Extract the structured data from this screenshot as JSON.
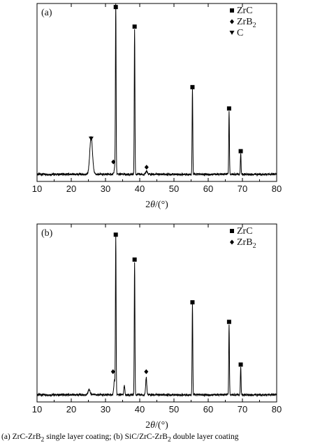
{
  "chart_data": [
    {
      "type": "line",
      "panel_label": "(a)",
      "xlabel_prefix": "2",
      "xlabel_theta": "θ",
      "xlabel_suffix": "/(°)",
      "ylabel": "",
      "xlim": [
        10,
        80
      ],
      "xticks": [
        "10",
        "20",
        "30",
        "40",
        "50",
        "60",
        "70",
        "80"
      ],
      "grid": false,
      "legend_position": "top-right",
      "legend": [
        {
          "symbol": "square",
          "text": "ZrC",
          "sub": ""
        },
        {
          "symbol": "diamond",
          "text": "ZrB",
          "sub": "2"
        },
        {
          "symbol": "triangle-down",
          "text": "C",
          "sub": ""
        }
      ],
      "series": [
        {
          "peaks": [
            {
              "x": 25.8,
              "h": 0.21,
              "w": 0.55
            },
            {
              "x": 33.0,
              "h": 0.93,
              "w": 0.14
            },
            {
              "x": 32.8,
              "h": 0.05,
              "w": 0.3
            },
            {
              "x": 38.5,
              "h": 0.82,
              "w": 0.14
            },
            {
              "x": 42.0,
              "h": 0.02,
              "w": 0.3
            },
            {
              "x": 55.4,
              "h": 0.48,
              "w": 0.14
            },
            {
              "x": 66.1,
              "h": 0.36,
              "w": 0.14
            },
            {
              "x": 69.5,
              "h": 0.12,
              "w": 0.14
            }
          ],
          "baseline": 0.04
        }
      ],
      "markers": [
        {
          "x": 25.8,
          "y": 0.24,
          "symbol": "triangle-down"
        },
        {
          "x": 33.0,
          "y": 0.98,
          "symbol": "square"
        },
        {
          "x": 32.3,
          "y": 0.11,
          "symbol": "diamond"
        },
        {
          "x": 38.5,
          "y": 0.87,
          "symbol": "square"
        },
        {
          "x": 42.0,
          "y": 0.08,
          "symbol": "diamond"
        },
        {
          "x": 55.4,
          "y": 0.53,
          "symbol": "square"
        },
        {
          "x": 66.1,
          "y": 0.41,
          "symbol": "square"
        },
        {
          "x": 69.5,
          "y": 0.17,
          "symbol": "square"
        }
      ]
    },
    {
      "type": "line",
      "panel_label": "(b)",
      "xlabel_prefix": "2",
      "xlabel_theta": "θ",
      "xlabel_suffix": "/(°)",
      "ylabel": "",
      "xlim": [
        10,
        80
      ],
      "xticks": [
        "10",
        "20",
        "30",
        "40",
        "50",
        "60",
        "70",
        "80"
      ],
      "grid": false,
      "legend_position": "top-right",
      "legend": [
        {
          "symbol": "square",
          "text": "ZrC",
          "sub": ""
        },
        {
          "symbol": "diamond",
          "text": "ZrB",
          "sub": "2"
        }
      ],
      "series": [
        {
          "peaks": [
            {
              "x": 25.2,
              "h": 0.03,
              "w": 0.4
            },
            {
              "x": 33.0,
              "h": 0.89,
              "w": 0.14
            },
            {
              "x": 32.6,
              "h": 0.08,
              "w": 0.25
            },
            {
              "x": 35.5,
              "h": 0.05,
              "w": 0.2
            },
            {
              "x": 38.5,
              "h": 0.75,
              "w": 0.14
            },
            {
              "x": 41.9,
              "h": 0.1,
              "w": 0.22
            },
            {
              "x": 55.4,
              "h": 0.51,
              "w": 0.14
            },
            {
              "x": 66.1,
              "h": 0.4,
              "w": 0.14
            },
            {
              "x": 69.5,
              "h": 0.16,
              "w": 0.14
            }
          ],
          "baseline": 0.04
        }
      ],
      "markers": [
        {
          "x": 33.0,
          "y": 0.94,
          "symbol": "square"
        },
        {
          "x": 32.2,
          "y": 0.17,
          "symbol": "diamond"
        },
        {
          "x": 38.5,
          "y": 0.8,
          "symbol": "square"
        },
        {
          "x": 41.9,
          "y": 0.17,
          "symbol": "diamond"
        },
        {
          "x": 55.4,
          "y": 0.56,
          "symbol": "square"
        },
        {
          "x": 66.1,
          "y": 0.45,
          "symbol": "square"
        },
        {
          "x": 69.5,
          "y": 0.21,
          "symbol": "square"
        }
      ]
    }
  ],
  "caption": {
    "a_prefix": "(a) ZrC-ZrB",
    "a_sub": "2",
    "a_suffix": " single layer coating; (b) SiC/ZrC-ZrB",
    "b_sub": "2",
    "b_suffix": " double layer coating"
  }
}
